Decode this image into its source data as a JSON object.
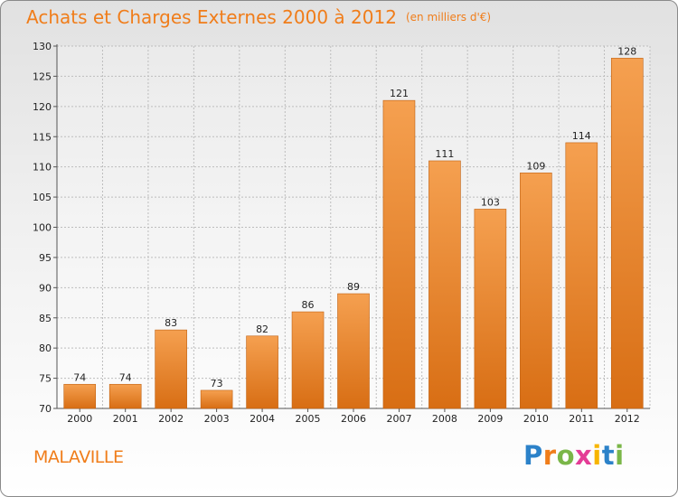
{
  "chart_data": {
    "type": "bar",
    "title": "Achats et Charges Externes 2000 à 2012",
    "subtitle": "(en milliers d'€)",
    "categories": [
      "2000",
      "2001",
      "2002",
      "2003",
      "2004",
      "2005",
      "2006",
      "2007",
      "2008",
      "2009",
      "2010",
      "2011",
      "2012"
    ],
    "values": [
      74,
      74,
      83,
      73,
      82,
      86,
      89,
      121,
      111,
      103,
      109,
      114,
      128
    ],
    "data_labels": [
      "74",
      "74",
      "83",
      "73",
      "82",
      "86",
      "89",
      "121",
      "111",
      "103",
      "109",
      "114",
      "128"
    ],
    "ylim": [
      70,
      130
    ],
    "yticks": [
      70,
      75,
      80,
      85,
      90,
      95,
      100,
      105,
      110,
      115,
      120,
      125,
      130
    ],
    "xlabel": "",
    "ylabel": "",
    "grid": true,
    "legend": "none",
    "colors": {
      "bar_light": "#f5a050",
      "bar_dark": "#d86e14",
      "bar_edge": "#c06010"
    }
  },
  "location": "MALAVILLE",
  "brand": {
    "letters": [
      "P",
      "r",
      "o",
      "x",
      "i",
      "t",
      "i"
    ],
    "colors": [
      "#2c82c9",
      "#f07d1a",
      "#7ab648",
      "#e43c96",
      "#f7b500",
      "#2c82c9",
      "#7ab648"
    ]
  },
  "accent_color": "#f07d1a"
}
